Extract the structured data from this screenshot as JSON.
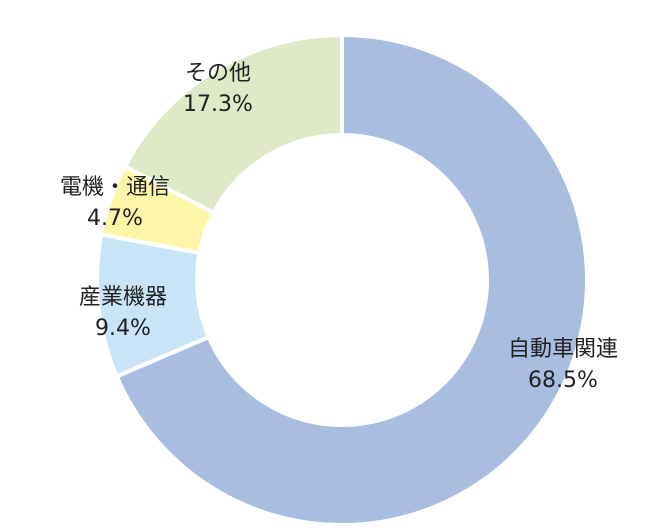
{
  "chart_data": {
    "type": "donut",
    "categories": [
      "自動車関連",
      "産業機器",
      "電機・通信",
      "その他"
    ],
    "values": [
      68.5,
      9.4,
      4.7,
      17.3
    ],
    "value_labels": [
      "68.5%",
      "9.4%",
      "4.7%",
      "17.3%"
    ],
    "colors": [
      "#a9bde0",
      "#c8e4f6",
      "#fdf5a8",
      "#dde9c7"
    ]
  }
}
